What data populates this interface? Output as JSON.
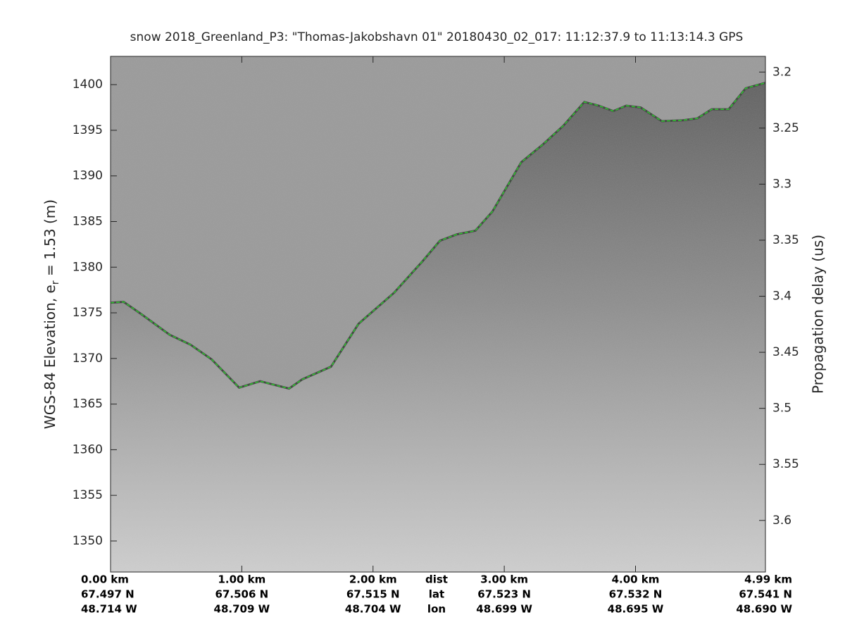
{
  "chart_data": {
    "type": "line",
    "title": "snow 2018_Greenland_P3: \"Thomas-Jakobshavn 01\"  20180430_02_017: 11:12:37.9 to 11:13:14.3 GPS",
    "ylabel": "WGS-84 Elevation, e",
    "ylabel_sub": "r",
    "ylabel_end": " = 1.53 (m)",
    "y2label": "Propagation delay (us)",
    "x": [
      0,
      0.1,
      0.23,
      0.45,
      0.61,
      0.77,
      0.98,
      1.14,
      1.36,
      1.46,
      1.68,
      1.89,
      2.16,
      2.38,
      2.51,
      2.64,
      2.78,
      2.91,
      3.13,
      3.29,
      3.45,
      3.61,
      3.72,
      3.83,
      3.93,
      4.04,
      4.2,
      4.36,
      4.47,
      4.58,
      4.71,
      4.84,
      4.99
    ],
    "series": [
      {
        "color": "#1ecc1e",
        "values": [
          1376.1,
          1376.2,
          1374.9,
          1372.6,
          1371.5,
          1369.9,
          1366.8,
          1367.5,
          1366.7,
          1367.7,
          1369.1,
          1373.8,
          1377.2,
          1380.7,
          1382.9,
          1383.6,
          1384.0,
          1386.1,
          1391.5,
          1393.4,
          1395.5,
          1398.1,
          1397.7,
          1397.1,
          1397.7,
          1397.5,
          1396.0,
          1396.1,
          1396.3,
          1397.3,
          1397.3,
          1399.6,
          1400.2
        ]
      }
    ],
    "xlim": [
      0,
      4.99
    ],
    "xticks": [
      {
        "value": 0,
        "label": "0.00 km"
      },
      {
        "value": 1,
        "label": "1.00 km"
      },
      {
        "value": 2,
        "label": "2.00 km"
      },
      {
        "value": 3,
        "label": "3.00 km"
      },
      {
        "value": 4,
        "label": "4.00 km"
      },
      {
        "value": 4.99,
        "label": "4.99 km"
      }
    ],
    "lat_labels": [
      "67.497 N",
      "67.506 N",
      "67.515 N",
      "67.523 N",
      "67.532 N",
      "67.541 N"
    ],
    "lon_labels": [
      "48.714 W",
      "48.709 W",
      "48.704 W",
      "48.699 W",
      "48.695 W",
      "48.690 W"
    ],
    "row_labels": [
      "dist",
      "lat",
      "lon"
    ],
    "ylim": [
      1346.6,
      1403.1
    ],
    "yticks": [
      1350,
      1355,
      1360,
      1365,
      1370,
      1375,
      1380,
      1385,
      1390,
      1395,
      1400
    ],
    "y2lim": [
      3.646,
      3.186
    ],
    "y2ticks": [
      3.2,
      3.25,
      3.3,
      3.35,
      3.4,
      3.45,
      3.5,
      3.55,
      3.6
    ]
  }
}
